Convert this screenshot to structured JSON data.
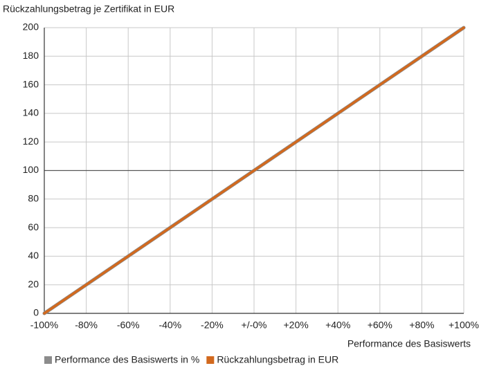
{
  "chart_data": {
    "type": "line",
    "y_label": "Rückzahlungsbetrag je Zertifikat in EUR",
    "x_label": "Performance des Basiswerts",
    "x": [
      -100,
      100
    ],
    "series": [
      {
        "name": "Performance des Basiswerts in %",
        "color": "#8c8c8c",
        "values": [
          0,
          200
        ]
      },
      {
        "name": "Rückzahlungsbetrag in EUR",
        "color": "#d2691e",
        "values": [
          0,
          200
        ]
      }
    ],
    "xlim": [
      -100,
      100
    ],
    "xticks": [
      {
        "value": -100,
        "label": "-100%"
      },
      {
        "value": -80,
        "label": "-80%"
      },
      {
        "value": -60,
        "label": "-60%"
      },
      {
        "value": -40,
        "label": "-40%"
      },
      {
        "value": -20,
        "label": "-20%"
      },
      {
        "value": 0,
        "label": "+/-0%"
      },
      {
        "value": 20,
        "label": "+20%"
      },
      {
        "value": 40,
        "label": "+40%"
      },
      {
        "value": 60,
        "label": "+60%"
      },
      {
        "value": 80,
        "label": "+80%"
      },
      {
        "value": 100,
        "label": "+100%"
      }
    ],
    "ylim": [
      0,
      200
    ],
    "yticks": [
      0,
      20,
      40,
      60,
      80,
      100,
      120,
      140,
      160,
      180,
      200
    ],
    "reference_line": 100,
    "grid": true,
    "legend": "bottom"
  }
}
